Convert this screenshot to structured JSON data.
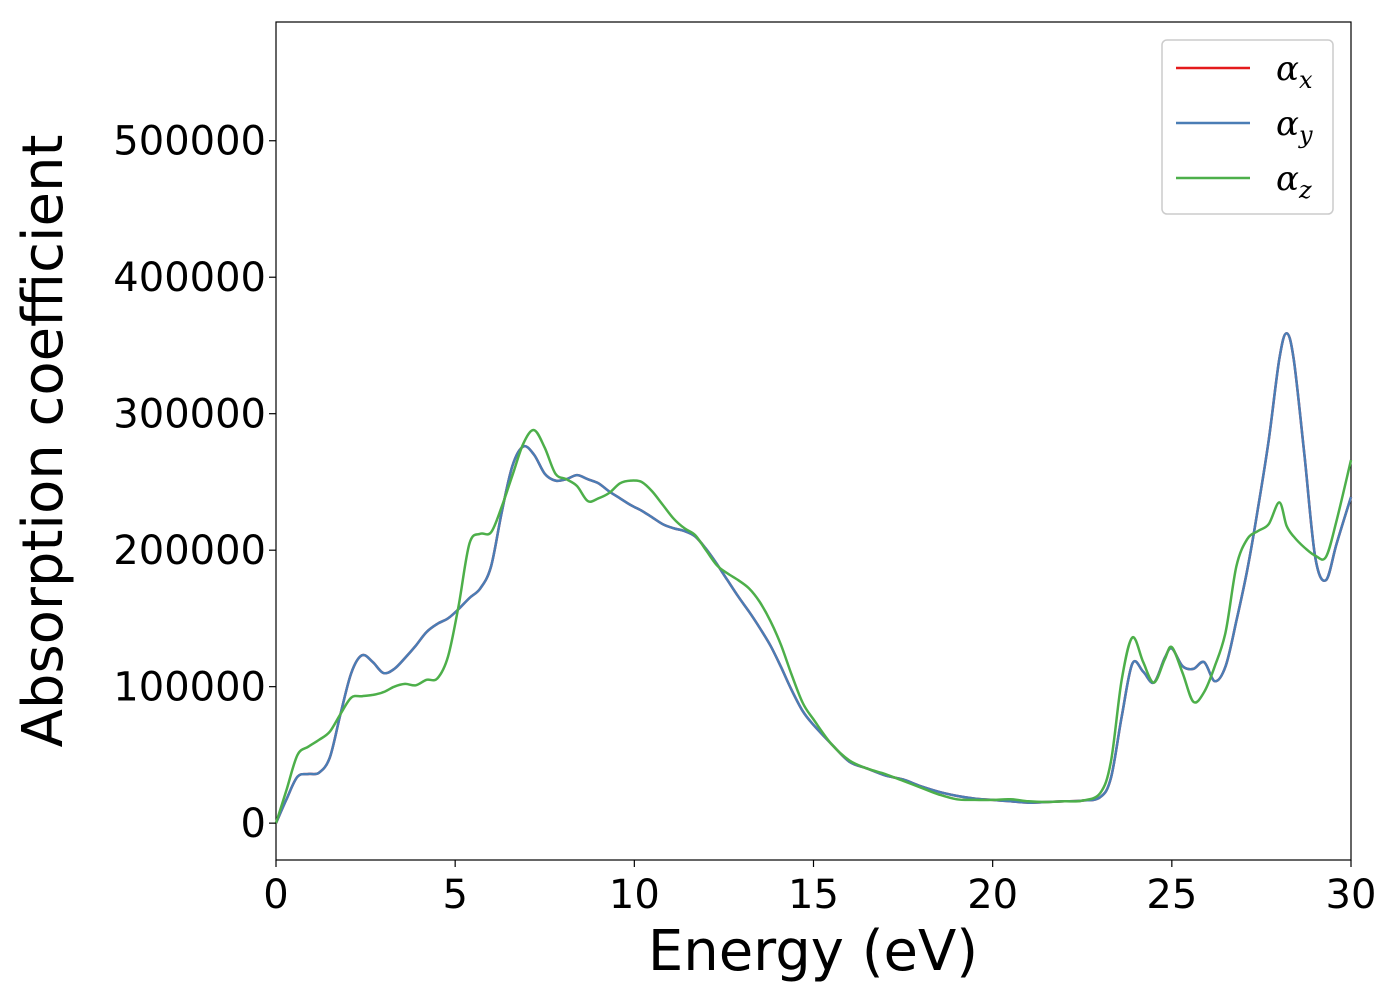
{
  "chart_data": {
    "type": "line",
    "xlabel": "Energy (eV)",
    "ylabel": "Absorption coefficient",
    "xlim": [
      0,
      30
    ],
    "ylim": [
      -27000,
      587000
    ],
    "xticks": [
      "0",
      "5",
      "10",
      "15",
      "20",
      "25",
      "30"
    ],
    "yticks": [
      "0",
      "100000",
      "200000",
      "300000",
      "400000",
      "500000"
    ],
    "grid": false,
    "legend_position": "top-right",
    "series": [
      {
        "name": "α_x",
        "label_main": "α",
        "label_sub": "x",
        "color": "#e41a1c",
        "x": [
          0,
          0.3,
          0.6,
          0.9,
          1.2,
          1.5,
          1.8,
          2.1,
          2.4,
          2.7,
          3.0,
          3.3,
          3.6,
          3.9,
          4.2,
          4.5,
          4.8,
          5.1,
          5.4,
          5.7,
          6.0,
          6.3,
          6.6,
          6.9,
          7.2,
          7.5,
          7.8,
          8.1,
          8.4,
          8.7,
          9.0,
          9.3,
          9.6,
          9.9,
          10.2,
          10.5,
          10.8,
          11.1,
          11.4,
          11.7,
          12.0,
          12.3,
          12.6,
          12.9,
          13.2,
          13.5,
          13.8,
          14.1,
          14.4,
          14.7,
          15.0,
          15.5,
          16.0,
          16.5,
          17.0,
          17.5,
          18.0,
          18.5,
          19.0,
          19.5,
          20.0,
          20.5,
          21.0,
          21.5,
          22.0,
          22.5,
          23.0,
          23.3,
          23.6,
          23.9,
          24.2,
          24.5,
          24.8,
          25.0,
          25.3,
          25.6,
          25.9,
          26.2,
          26.5,
          26.8,
          27.1,
          27.4,
          27.7,
          28.0,
          28.2,
          28.4,
          28.7,
          29.0,
          29.3,
          29.6,
          30.0
        ],
        "values": [
          0,
          18000,
          34000,
          36000,
          37000,
          48000,
          80000,
          110000,
          123000,
          118000,
          110000,
          113000,
          121000,
          130000,
          140000,
          146000,
          150000,
          157000,
          165000,
          172000,
          188000,
          228000,
          262000,
          276000,
          270000,
          256000,
          251000,
          252000,
          255000,
          252000,
          249000,
          243000,
          238000,
          233000,
          229000,
          224000,
          219000,
          216000,
          214000,
          210000,
          201000,
          190000,
          178000,
          166000,
          155000,
          143000,
          130000,
          114000,
          97000,
          82000,
          72000,
          58000,
          45000,
          40000,
          35000,
          32000,
          27000,
          23000,
          20000,
          18000,
          17000,
          16000,
          15000,
          15500,
          16000,
          16500,
          19000,
          33000,
          78000,
          117000,
          111000,
          103000,
          121000,
          128000,
          115000,
          113000,
          118000,
          104000,
          115000,
          148000,
          185000,
          230000,
          280000,
          340000,
          359000,
          340000,
          270000,
          195000,
          178000,
          205000,
          239000
        ]
      },
      {
        "name": "α_y",
        "label_main": "α",
        "label_sub": "y",
        "color": "#4a7db5",
        "x": [
          0,
          0.3,
          0.6,
          0.9,
          1.2,
          1.5,
          1.8,
          2.1,
          2.4,
          2.7,
          3.0,
          3.3,
          3.6,
          3.9,
          4.2,
          4.5,
          4.8,
          5.1,
          5.4,
          5.7,
          6.0,
          6.3,
          6.6,
          6.9,
          7.2,
          7.5,
          7.8,
          8.1,
          8.4,
          8.7,
          9.0,
          9.3,
          9.6,
          9.9,
          10.2,
          10.5,
          10.8,
          11.1,
          11.4,
          11.7,
          12.0,
          12.3,
          12.6,
          12.9,
          13.2,
          13.5,
          13.8,
          14.1,
          14.4,
          14.7,
          15.0,
          15.5,
          16.0,
          16.5,
          17.0,
          17.5,
          18.0,
          18.5,
          19.0,
          19.5,
          20.0,
          20.5,
          21.0,
          21.5,
          22.0,
          22.5,
          23.0,
          23.3,
          23.6,
          23.9,
          24.2,
          24.5,
          24.8,
          25.0,
          25.3,
          25.6,
          25.9,
          26.2,
          26.5,
          26.8,
          27.1,
          27.4,
          27.7,
          28.0,
          28.2,
          28.4,
          28.7,
          29.0,
          29.3,
          29.6,
          30.0
        ],
        "values": [
          0,
          18000,
          34000,
          36000,
          37000,
          48000,
          80000,
          110000,
          123000,
          118000,
          110000,
          113000,
          121000,
          130000,
          140000,
          146000,
          150000,
          157000,
          165000,
          172000,
          188000,
          228000,
          262000,
          276000,
          270000,
          256000,
          251000,
          252000,
          255000,
          252000,
          249000,
          243000,
          238000,
          233000,
          229000,
          224000,
          219000,
          216000,
          214000,
          210000,
          201000,
          190000,
          178000,
          166000,
          155000,
          143000,
          130000,
          114000,
          97000,
          82000,
          72000,
          58000,
          45000,
          40000,
          35000,
          32000,
          27000,
          23000,
          20000,
          18000,
          17000,
          16000,
          15000,
          15500,
          16000,
          16500,
          19000,
          33000,
          78000,
          117000,
          111000,
          103000,
          121000,
          128000,
          115000,
          113000,
          118000,
          104000,
          115000,
          148000,
          185000,
          230000,
          280000,
          340000,
          359000,
          340000,
          270000,
          195000,
          178000,
          205000,
          239000
        ]
      },
      {
        "name": "α_z",
        "label_main": "α",
        "label_sub": "z",
        "color": "#4daf4a",
        "x": [
          0,
          0.3,
          0.6,
          0.9,
          1.2,
          1.5,
          1.8,
          2.1,
          2.4,
          2.7,
          3.0,
          3.3,
          3.6,
          3.9,
          4.2,
          4.5,
          4.8,
          5.1,
          5.4,
          5.7,
          6.0,
          6.3,
          6.6,
          6.9,
          7.2,
          7.5,
          7.8,
          8.1,
          8.4,
          8.7,
          9.0,
          9.3,
          9.6,
          9.9,
          10.2,
          10.5,
          10.8,
          11.1,
          11.4,
          11.7,
          12.0,
          12.3,
          12.6,
          12.9,
          13.2,
          13.5,
          13.8,
          14.1,
          14.4,
          14.7,
          15.0,
          15.5,
          16.0,
          16.5,
          17.0,
          17.5,
          18.0,
          18.5,
          19.0,
          19.5,
          20.0,
          20.5,
          21.0,
          21.5,
          22.0,
          22.5,
          23.0,
          23.3,
          23.6,
          23.9,
          24.2,
          24.5,
          24.8,
          25.0,
          25.3,
          25.6,
          25.9,
          26.2,
          26.5,
          26.8,
          27.1,
          27.4,
          27.7,
          28.0,
          28.2,
          28.4,
          28.7,
          29.0,
          29.3,
          29.6,
          30.0
        ],
        "values": [
          0,
          25000,
          50000,
          56000,
          61000,
          67000,
          80000,
          92000,
          93000,
          94000,
          96000,
          100000,
          102000,
          101000,
          105000,
          106000,
          122000,
          160000,
          205000,
          212000,
          213000,
          232000,
          255000,
          278000,
          288000,
          275000,
          256000,
          252000,
          247000,
          236000,
          238000,
          242000,
          249000,
          251000,
          250000,
          243000,
          233000,
          223000,
          216000,
          211000,
          200000,
          189000,
          183000,
          178000,
          172000,
          162000,
          148000,
          130000,
          108000,
          88000,
          76000,
          58000,
          46000,
          40000,
          36000,
          31000,
          26000,
          21000,
          17500,
          17000,
          17000,
          17500,
          16000,
          15500,
          16000,
          16500,
          22000,
          45000,
          105000,
          136000,
          118000,
          103000,
          120000,
          129000,
          110000,
          89000,
          96000,
          115000,
          140000,
          188000,
          208000,
          214000,
          219000,
          235000,
          218000,
          210000,
          202000,
          196000,
          195000,
          222000,
          266000
        ]
      }
    ]
  }
}
